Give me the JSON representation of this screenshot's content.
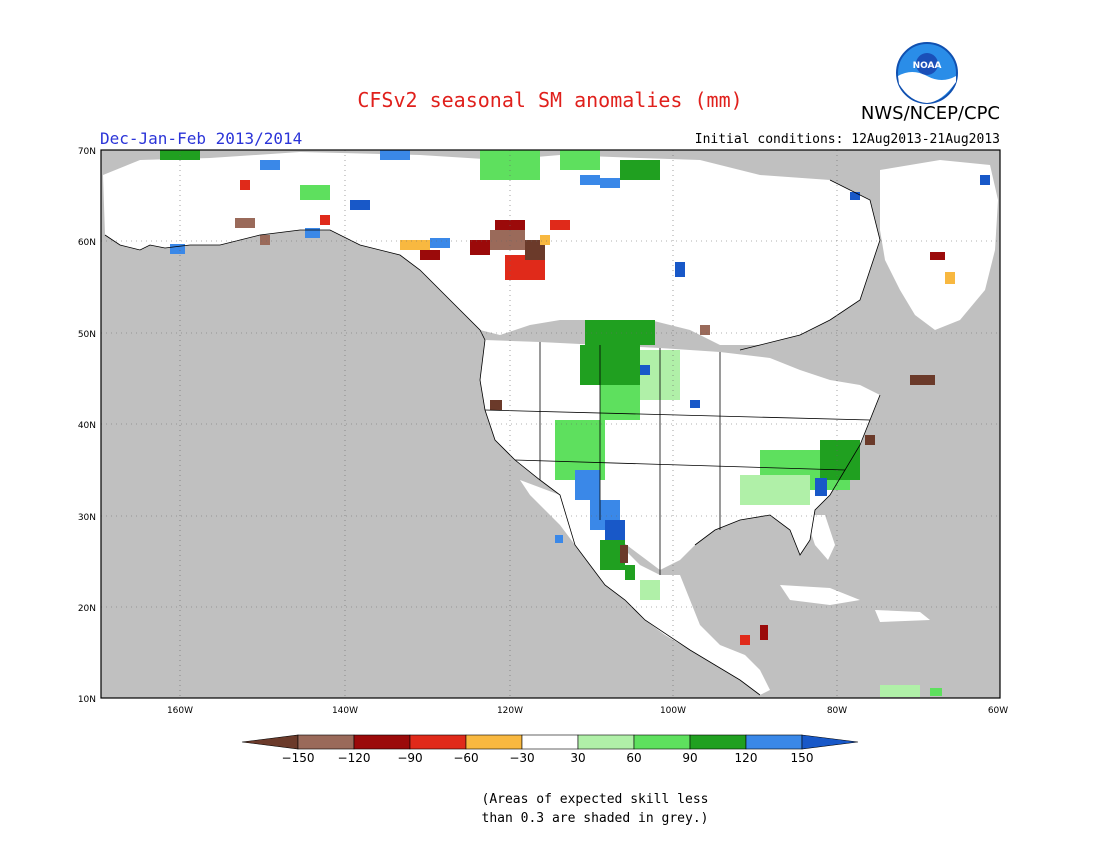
{
  "title": "CFSv2 seasonal SM anomalies (mm)",
  "season": "Dec-Jan-Feb 2013/2014",
  "initial_conditions": "Initial conditions: 12Aug2013-21Aug2013",
  "agency": "NWS/NCEP/CPC",
  "logo_text": "NOAA",
  "map": {
    "lon_range": [
      -170,
      -60
    ],
    "lat_range": [
      10,
      70
    ],
    "lon_ticks": [
      "160W",
      "140W",
      "120W",
      "100W",
      "80W",
      "60W"
    ],
    "lat_ticks": [
      "70N",
      "60N",
      "50N",
      "40N",
      "30N",
      "20N",
      "10N"
    ],
    "grey_color": "#c0c0c0"
  },
  "colorbar": {
    "colors": [
      "#6b3a2a",
      "#9a6a5a",
      "#9b0a0a",
      "#e02a1a",
      "#f8b840",
      "#ffffff",
      "#b0f0a8",
      "#5ee05e",
      "#20a020",
      "#3a88e8",
      "#1858c8"
    ],
    "labels": [
      "−150",
      "−120",
      "−90",
      "−60",
      "−30",
      "30",
      "60",
      "90",
      "120",
      "150"
    ]
  },
  "note": [
    "(Areas of expected skill less",
    "than 0.3 are shaded in grey.)"
  ]
}
